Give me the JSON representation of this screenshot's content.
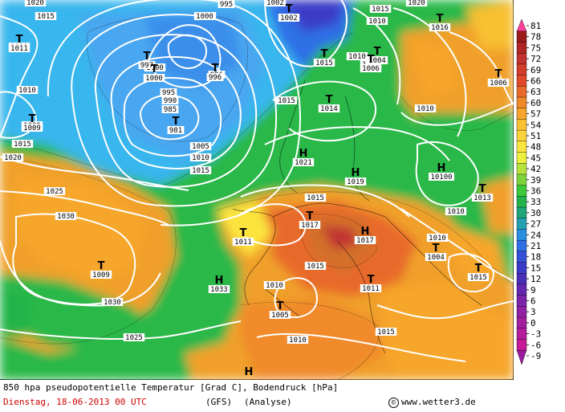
{
  "caption": {
    "title": "850 hpa pseudopotentielle Temperatur [Grad C], Bodendruck [hPa]",
    "date": "Dienstag, 18-06-2013  00 UTC",
    "model": "(GFS)",
    "analysis": "(Analyse)",
    "credit": "www.wetter3.de",
    "copyright_symbol": "©"
  },
  "legend": {
    "ticks": [
      "81",
      "78",
      "75",
      "72",
      "69",
      "66",
      "63",
      "60",
      "57",
      "54",
      "51",
      "48",
      "45",
      "42",
      "39",
      "36",
      "33",
      "30",
      "27",
      "24",
      "21",
      "18",
      "15",
      "12",
      "9",
      "6",
      "3",
      "0",
      "-3",
      "-6",
      "-9"
    ],
    "colors": [
      "#ff3f9a",
      "#9b1b1b",
      "#b02525",
      "#c23030",
      "#d23d2b",
      "#e0482a",
      "#e86a2a",
      "#f08a2a",
      "#f6a62c",
      "#f8c032",
      "#fad23a",
      "#fce43e",
      "#eef040",
      "#b8e23c",
      "#7cd43a",
      "#3ec83c",
      "#22b44a",
      "#1ea67a",
      "#22a0b0",
      "#2a8ee0",
      "#2f6fe6",
      "#3350d8",
      "#3a3ac8",
      "#4a2eb8",
      "#6428b0",
      "#7a24aa",
      "#9020a4",
      "#a41ea0",
      "#b61c9c",
      "#c81a98",
      "#9a1a9e"
    ]
  },
  "map": {
    "land_color": "#2bb84a",
    "sea_cold_color": "#39b6ee",
    "warm_color": "#f0a02c",
    "hot_color": "#d2702a",
    "isobar_color": "#ffffff",
    "isobar_labels": [
      "1020",
      "1015",
      "1011",
      "1010",
      "1009",
      "1015",
      "1020",
      "1025",
      "1030",
      "1030",
      "1025",
      "1000",
      "995",
      "990",
      "985",
      "1000",
      "1005",
      "1010",
      "1015",
      "1000",
      "996",
      "995",
      "1002",
      "1015",
      "1005",
      "1010",
      "1015",
      "1010",
      "1010",
      "1015",
      "1020",
      "1010",
      "1015",
      "1010",
      "1015",
      "1010",
      "1010"
    ],
    "systems": [
      {
        "letter": "T",
        "value": "1011"
      },
      {
        "letter": "T",
        "value": "997"
      },
      {
        "letter": "T",
        "value": "1000"
      },
      {
        "letter": "T",
        "value": "996"
      },
      {
        "letter": "T",
        "value": "981"
      },
      {
        "letter": "T",
        "value": "1009"
      },
      {
        "letter": "T",
        "value": "1002"
      },
      {
        "letter": "T",
        "value": "1015"
      },
      {
        "letter": "T",
        "value": "1004"
      },
      {
        "letter": "T",
        "value": "1006"
      },
      {
        "letter": "T",
        "value": "1014"
      },
      {
        "letter": "H",
        "value": "1021"
      },
      {
        "letter": "H",
        "value": "1019"
      },
      {
        "letter": "T",
        "value": "1016"
      },
      {
        "letter": "T",
        "value": "1006"
      },
      {
        "letter": "H",
        "value": "10100"
      },
      {
        "letter": "T",
        "value": "1013"
      },
      {
        "letter": "T",
        "value": "1017"
      },
      {
        "letter": "H",
        "value": "1017"
      },
      {
        "letter": "T",
        "value": "1004"
      },
      {
        "letter": "T",
        "value": "1015"
      },
      {
        "letter": "T",
        "value": "1011"
      },
      {
        "letter": "T",
        "value": "1011"
      },
      {
        "letter": "H",
        "value": "1033"
      },
      {
        "letter": "T",
        "value": "1009"
      },
      {
        "letter": "T",
        "value": "1005"
      },
      {
        "letter": "H",
        "value": ""
      }
    ]
  }
}
